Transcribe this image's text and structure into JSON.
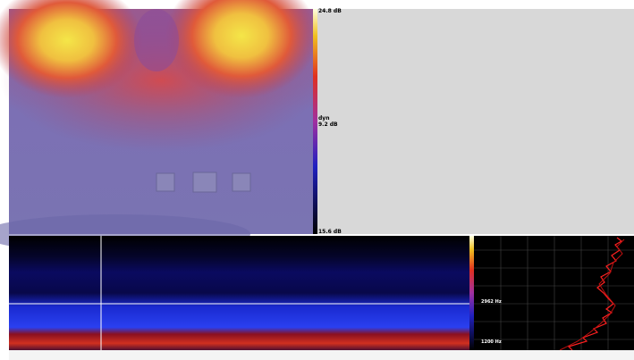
{
  "colorbar": {
    "max": "24.8 dB",
    "mid_label": "dyn",
    "mid_value": "9.2 dB",
    "min": "15.6 dB"
  },
  "spectrum": {
    "upper_marker": "2962 Hz",
    "lower_marker": "1200 Hz"
  }
}
